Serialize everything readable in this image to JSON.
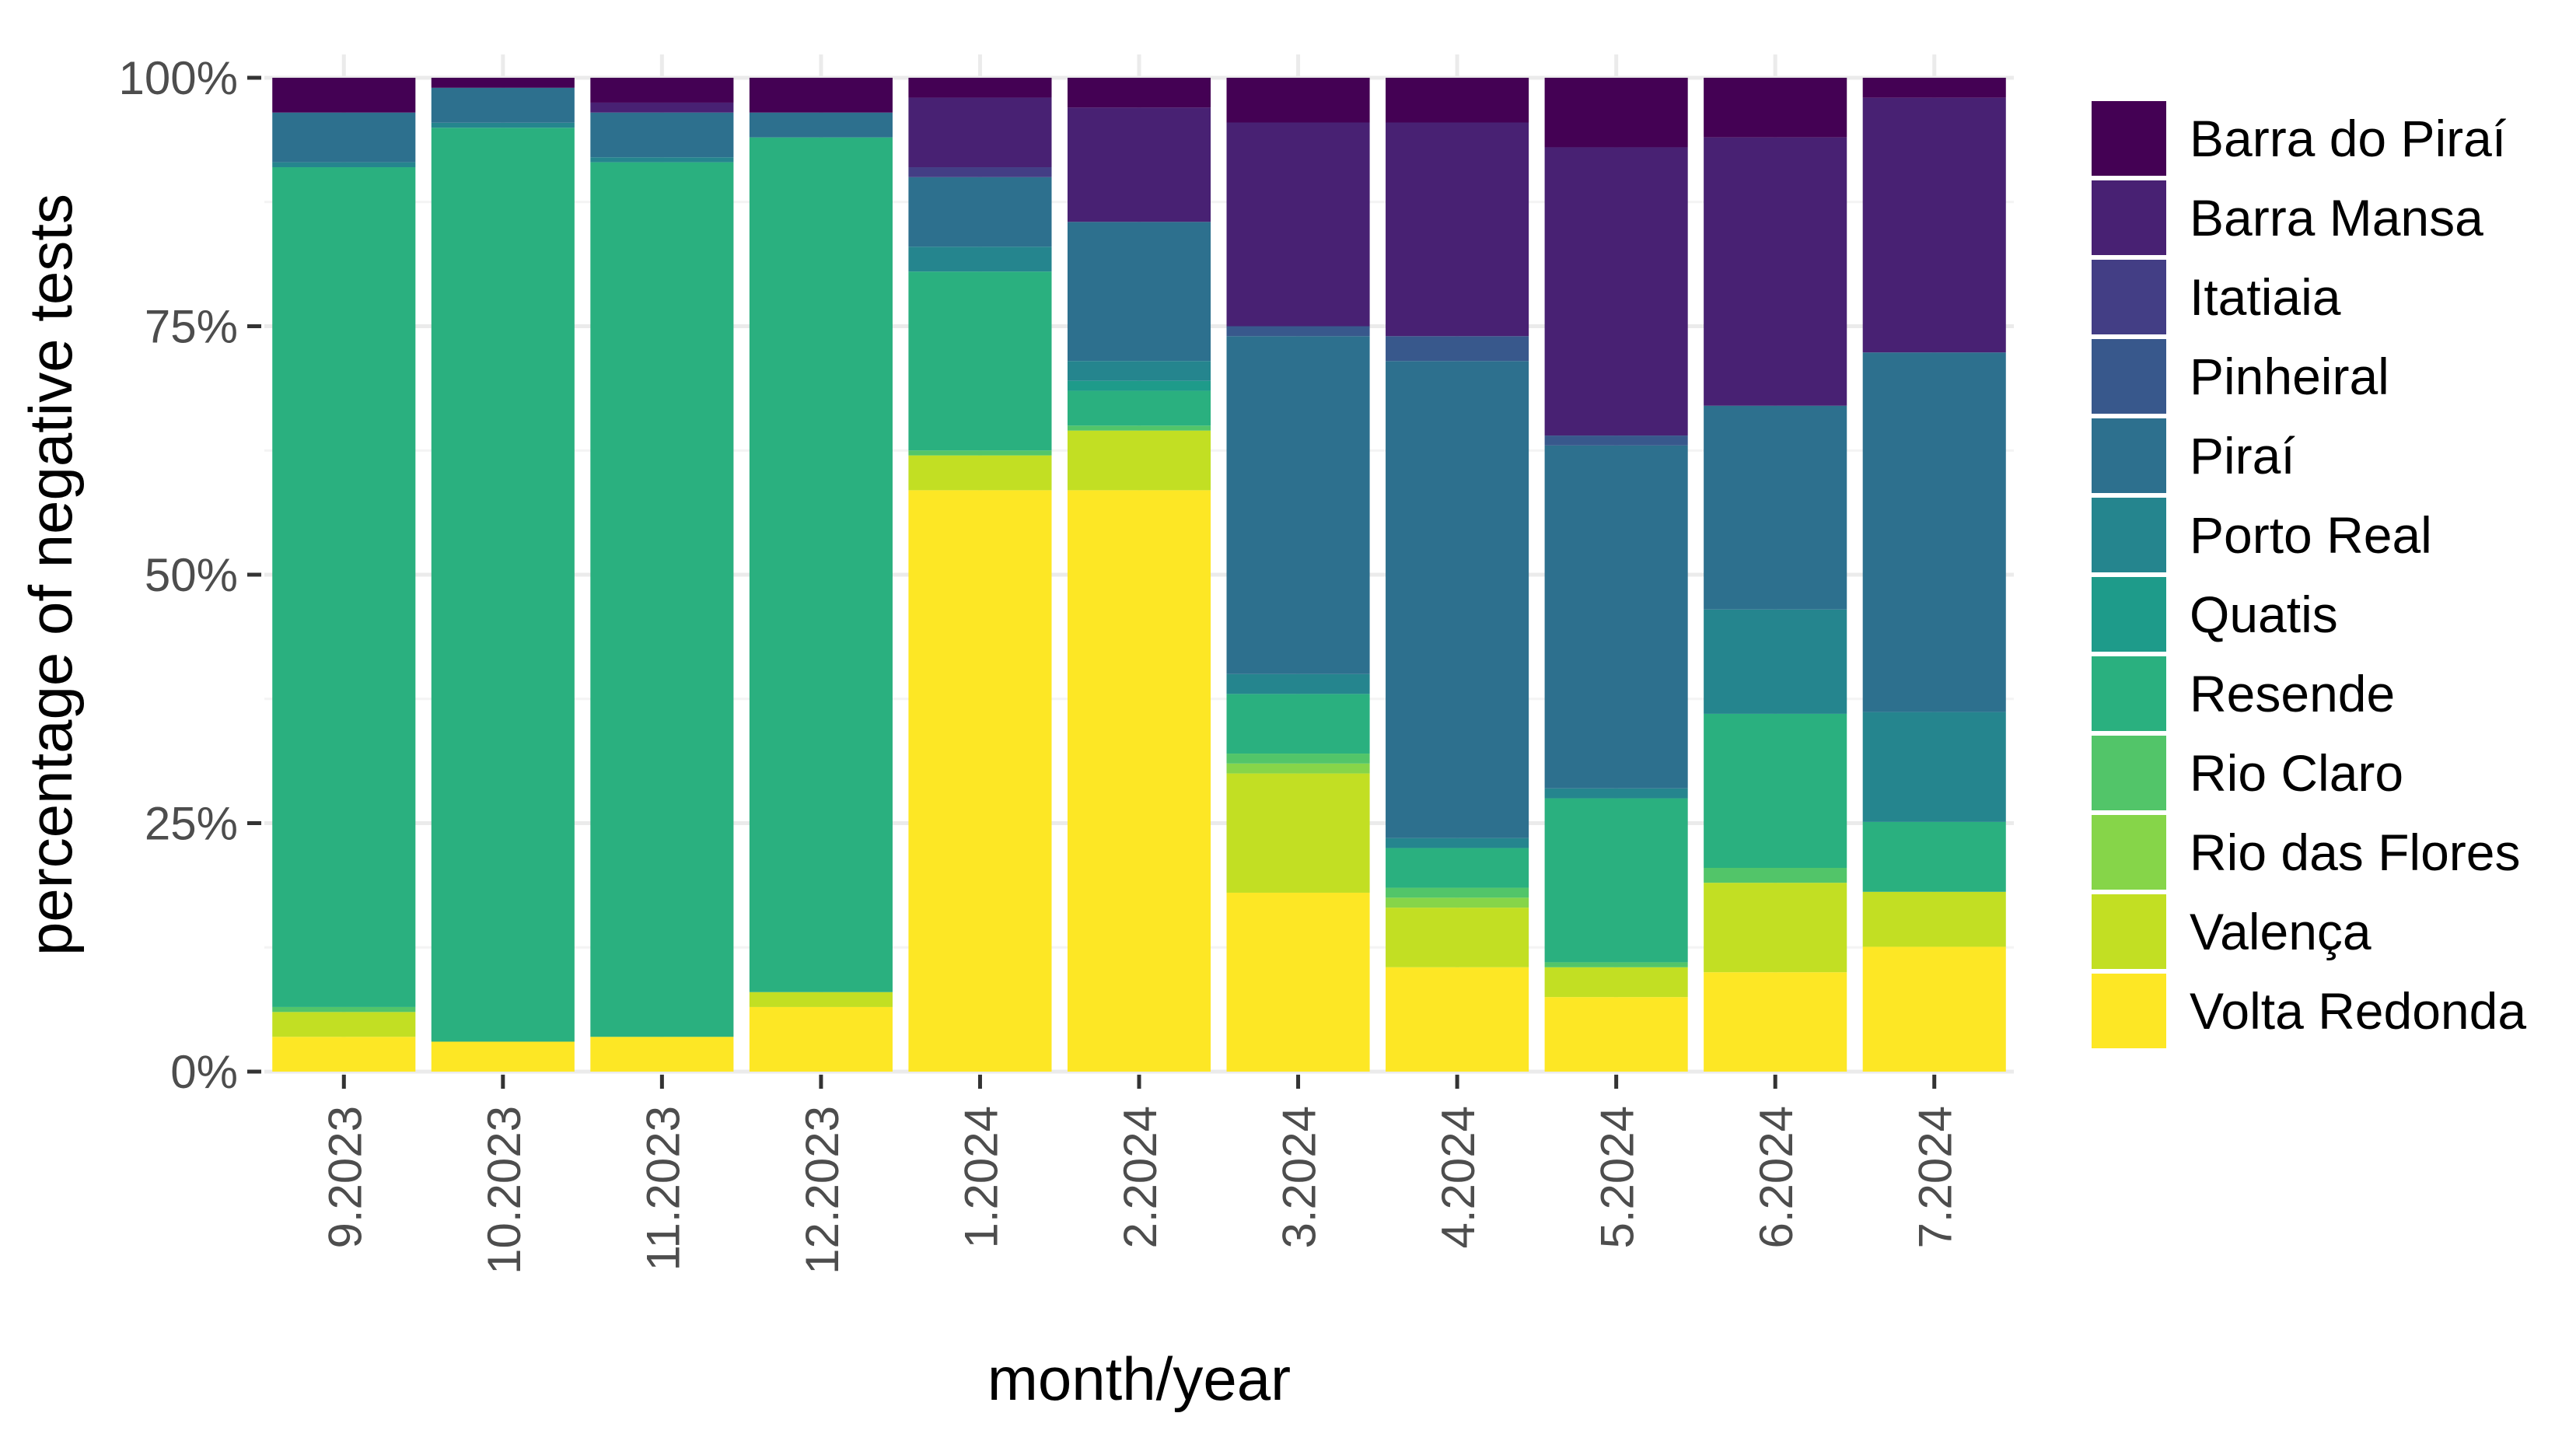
{
  "chart_data": {
    "type": "stacked-bar-percent",
    "title": "",
    "xlabel": "month/year",
    "ylabel": "percentage of negative tests",
    "ylim": [
      0,
      100
    ],
    "yticks": [
      0,
      25,
      50,
      75,
      100
    ],
    "ytick_labels": [
      "0%",
      "25%",
      "50%",
      "75%",
      "100%"
    ],
    "grid": true,
    "legend_position": "right",
    "categories": [
      "9.2023",
      "10.2023",
      "11.2023",
      "12.2023",
      "1.2024",
      "2.2024",
      "3.2024",
      "4.2024",
      "5.2024",
      "6.2024",
      "7.2024"
    ],
    "series": [
      {
        "name": "Volta Redonda",
        "color": "#fde725",
        "values": [
          3.5,
          3.0,
          3.5,
          6.5,
          58.5,
          58.5,
          18.0,
          10.5,
          7.5,
          10.0,
          12.5
        ]
      },
      {
        "name": "Valença",
        "color": "#c2df23",
        "values": [
          2.5,
          0.0,
          0.0,
          1.5,
          3.5,
          6.0,
          12.0,
          6.0,
          3.0,
          9.0,
          5.5
        ]
      },
      {
        "name": "Rio das Flores",
        "color": "#86d549",
        "values": [
          0.0,
          0.0,
          0.0,
          0.0,
          0.0,
          0.0,
          1.0,
          1.0,
          0.0,
          0.0,
          0.0
        ]
      },
      {
        "name": "Rio Claro",
        "color": "#52c569",
        "values": [
          0.5,
          0.0,
          0.0,
          0.0,
          0.5,
          0.5,
          1.0,
          1.0,
          0.5,
          1.5,
          0.0
        ]
      },
      {
        "name": "Resende",
        "color": "#2ab07f",
        "values": [
          84.5,
          91.5,
          88.0,
          86.0,
          18.0,
          3.5,
          6.0,
          4.0,
          16.5,
          15.5,
          7.0
        ]
      },
      {
        "name": "Quatis",
        "color": "#1e9b8a",
        "values": [
          0.0,
          0.0,
          0.0,
          0.0,
          0.0,
          1.0,
          0.0,
          0.0,
          0.0,
          0.0,
          0.0
        ]
      },
      {
        "name": "Porto Real",
        "color": "#25858e",
        "values": [
          0.5,
          0.5,
          0.5,
          0.0,
          2.5,
          2.0,
          2.0,
          1.0,
          1.0,
          10.5,
          11.0
        ]
      },
      {
        "name": "Piraí",
        "color": "#2d708e",
        "values": [
          5.0,
          3.5,
          4.5,
          2.5,
          7.0,
          14.0,
          34.0,
          48.0,
          34.5,
          20.5,
          36.0
        ]
      },
      {
        "name": "Pinheiral",
        "color": "#38588c",
        "values": [
          0.0,
          0.0,
          0.0,
          0.0,
          0.0,
          0.0,
          1.0,
          2.5,
          1.0,
          0.0,
          0.0
        ]
      },
      {
        "name": "Itatiaia",
        "color": "#433e85",
        "values": [
          0.0,
          0.0,
          0.0,
          0.0,
          1.0,
          0.0,
          0.0,
          0.0,
          0.0,
          0.0,
          0.0
        ]
      },
      {
        "name": "Barra Mansa",
        "color": "#482173",
        "values": [
          0.0,
          0.0,
          1.0,
          0.0,
          7.0,
          11.5,
          20.5,
          21.5,
          29.0,
          27.0,
          25.5
        ]
      },
      {
        "name": "Barra do Piraí",
        "color": "#440154",
        "values": [
          3.5,
          1.0,
          2.5,
          3.5,
          2.0,
          3.0,
          4.5,
          4.5,
          7.0,
          6.0,
          2.0
        ]
      }
    ],
    "legend_order": [
      "Barra do Piraí",
      "Barra Mansa",
      "Itatiaia",
      "Pinheiral",
      "Piraí",
      "Porto Real",
      "Quatis",
      "Resende",
      "Rio Claro",
      "Rio das Flores",
      "Valença",
      "Volta Redonda"
    ]
  }
}
